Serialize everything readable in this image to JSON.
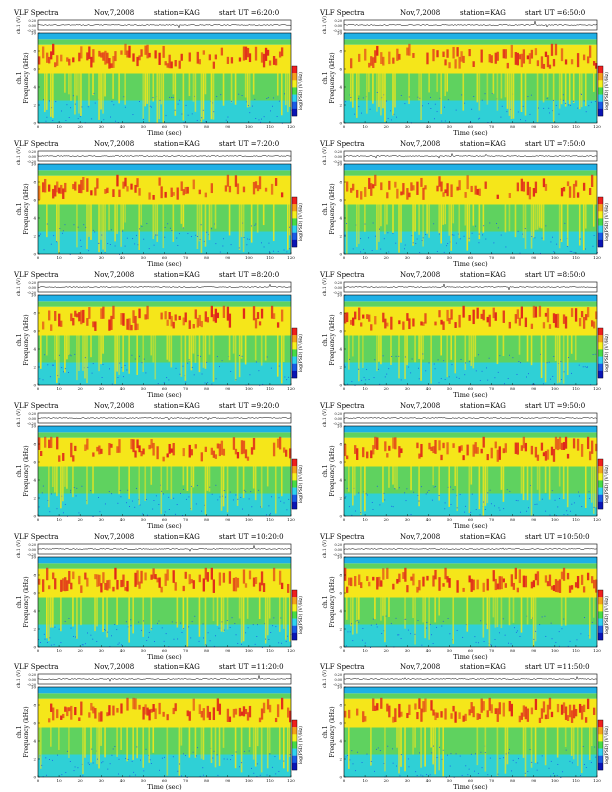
{
  "header_template": {
    "title": "VLF Spectra",
    "date": "Nov,7,2008",
    "station": "station=KAG",
    "start_prefix": "start UT ="
  },
  "labels": {
    "ch_label": "ch.1 (V)",
    "y_label_1": "ch.1",
    "y_label_2": "Frequency (kHz)",
    "x_label": "Time (sec)",
    "colorbar_label": "log(PSD) (V²/Hz)"
  },
  "chart_data": [
    {
      "type": "heatmap",
      "panel": "1",
      "start_ut": "6:20:0",
      "xlabel": "Time (sec)",
      "ylabel": "Frequency (kHz)",
      "xlim": [
        0,
        120
      ],
      "ylim": [
        0,
        10
      ],
      "x_ticks": [
        0,
        10,
        20,
        30,
        40,
        50,
        60,
        70,
        80,
        90,
        100,
        110,
        120
      ],
      "y_ticks": [
        0,
        2,
        4,
        6,
        8,
        10
      ],
      "ch_ticks": [
        "0.20",
        "0.00",
        "-0.20"
      ]
    },
    {
      "type": "heatmap",
      "panel": "2",
      "start_ut": "6:50:0",
      "xlabel": "Time (sec)",
      "ylabel": "Frequency (kHz)",
      "xlim": [
        0,
        120
      ],
      "ylim": [
        0,
        10
      ],
      "x_ticks": [
        0,
        10,
        20,
        30,
        40,
        50,
        60,
        70,
        80,
        90,
        100,
        110,
        120
      ],
      "y_ticks": [
        0,
        2,
        4,
        6,
        8,
        10
      ],
      "ch_ticks": [
        "0.20",
        "0.00",
        "-0.20"
      ]
    },
    {
      "type": "heatmap",
      "panel": "3",
      "start_ut": "7:20:0",
      "xlabel": "Time (sec)",
      "ylabel": "Frequency (kHz)",
      "xlim": [
        0,
        120
      ],
      "ylim": [
        0,
        10
      ],
      "x_ticks": [
        0,
        10,
        20,
        30,
        40,
        50,
        60,
        70,
        80,
        90,
        100,
        110,
        120
      ],
      "y_ticks": [
        0,
        2,
        4,
        6,
        8,
        10
      ],
      "ch_ticks": [
        "0.20",
        "0.00",
        "-0.20"
      ]
    },
    {
      "type": "heatmap",
      "panel": "4",
      "start_ut": "7:50:0",
      "xlabel": "Time (sec)",
      "ylabel": "Frequency (kHz)",
      "xlim": [
        0,
        120
      ],
      "ylim": [
        0,
        10
      ],
      "x_ticks": [
        0,
        10,
        20,
        30,
        40,
        50,
        60,
        70,
        80,
        90,
        100,
        110,
        120
      ],
      "y_ticks": [
        0,
        2,
        4,
        6,
        8,
        10
      ],
      "ch_ticks": [
        "0.20",
        "0.00",
        "-0.20"
      ]
    },
    {
      "type": "heatmap",
      "panel": "5",
      "start_ut": "8:20:0",
      "xlabel": "Time (sec)",
      "ylabel": "Frequency (kHz)",
      "xlim": [
        0,
        120
      ],
      "ylim": [
        0,
        10
      ],
      "x_ticks": [
        0,
        10,
        20,
        30,
        40,
        50,
        60,
        70,
        80,
        90,
        100,
        110,
        120
      ],
      "y_ticks": [
        0,
        2,
        4,
        6,
        8,
        10
      ],
      "ch_ticks": [
        "0.20",
        "0.00",
        "-0.20"
      ]
    },
    {
      "type": "heatmap",
      "panel": "6",
      "start_ut": "8:50:0",
      "xlabel": "Time (sec)",
      "ylabel": "Frequency (kHz)",
      "xlim": [
        0,
        120
      ],
      "ylim": [
        0,
        10
      ],
      "x_ticks": [
        0,
        10,
        20,
        30,
        40,
        50,
        60,
        70,
        80,
        90,
        100,
        110,
        120
      ],
      "y_ticks": [
        0,
        2,
        4,
        6,
        8,
        10
      ],
      "ch_ticks": [
        "0.20",
        "0.00",
        "-0.20"
      ]
    },
    {
      "type": "heatmap",
      "panel": "7",
      "start_ut": "9:20:0",
      "xlabel": "Time (sec)",
      "ylabel": "Frequency (kHz)",
      "xlim": [
        0,
        120
      ],
      "ylim": [
        0,
        10
      ],
      "x_ticks": [
        0,
        10,
        20,
        30,
        40,
        50,
        60,
        70,
        80,
        90,
        100,
        110,
        120
      ],
      "y_ticks": [
        0,
        2,
        4,
        6,
        8,
        10
      ],
      "ch_ticks": [
        "0.20",
        "0.00",
        "-0.20"
      ]
    },
    {
      "type": "heatmap",
      "panel": "8",
      "start_ut": "9:50:0",
      "xlabel": "Time (sec)",
      "ylabel": "Frequency (kHz)",
      "xlim": [
        0,
        120
      ],
      "ylim": [
        0,
        10
      ],
      "x_ticks": [
        0,
        10,
        20,
        30,
        40,
        50,
        60,
        70,
        80,
        90,
        100,
        110,
        120
      ],
      "y_ticks": [
        0,
        2,
        4,
        6,
        8,
        10
      ],
      "ch_ticks": [
        "0.20",
        "0.00",
        "-0.20"
      ]
    },
    {
      "type": "heatmap",
      "panel": "9",
      "start_ut": "10:20:0",
      "xlabel": "Time (sec)",
      "ylabel": "Frequency (kHz)",
      "xlim": [
        0,
        120
      ],
      "ylim": [
        0,
        10
      ],
      "x_ticks": [
        0,
        10,
        20,
        30,
        40,
        50,
        60,
        70,
        80,
        90,
        100,
        110,
        120
      ],
      "y_ticks": [
        0,
        2,
        4,
        6,
        8,
        10
      ],
      "ch_ticks": [
        "0.20",
        "0.00",
        "-0.20"
      ]
    },
    {
      "type": "heatmap",
      "panel": "10",
      "start_ut": "10:50:0",
      "xlabel": "Time (sec)",
      "ylabel": "Frequency (kHz)",
      "xlim": [
        0,
        120
      ],
      "ylim": [
        0,
        10
      ],
      "x_ticks": [
        0,
        10,
        20,
        30,
        40,
        50,
        60,
        70,
        80,
        90,
        100,
        110,
        120
      ],
      "y_ticks": [
        0,
        2,
        4,
        6,
        8,
        10
      ],
      "ch_ticks": [
        "0.20",
        "0.00",
        "-0.20"
      ]
    },
    {
      "type": "heatmap",
      "panel": "11",
      "start_ut": "11:20:0",
      "xlabel": "Time (sec)",
      "ylabel": "Frequency (kHz)",
      "xlim": [
        0,
        120
      ],
      "ylim": [
        0,
        10
      ],
      "x_ticks": [
        0,
        10,
        20,
        30,
        40,
        50,
        60,
        70,
        80,
        90,
        100,
        110,
        120
      ],
      "y_ticks": [
        0,
        2,
        4,
        6,
        8,
        10
      ],
      "ch_ticks": [
        "0.20",
        "0.00",
        "-0.20"
      ]
    },
    {
      "type": "heatmap",
      "panel": "12",
      "start_ut": "11:50:0",
      "xlabel": "Time (sec)",
      "ylabel": "Frequency (kHz)",
      "xlim": [
        0,
        120
      ],
      "ylim": [
        0,
        10
      ],
      "x_ticks": [
        0,
        10,
        20,
        30,
        40,
        50,
        60,
        70,
        80,
        90,
        100,
        110,
        120
      ],
      "y_ticks": [
        0,
        2,
        4,
        6,
        8,
        10
      ],
      "ch_ticks": [
        "0.20",
        "0.00",
        "-0.20"
      ]
    }
  ],
  "colors": {
    "band_high": "#e0261a",
    "band_mid": "#f5e61a",
    "band_low_green": "#5fd25f",
    "band_low_cyan": "#2fd0d6",
    "top_band": "#1fb0e6",
    "colorbar": [
      "#f01e1e",
      "#f5a01a",
      "#f5f01e",
      "#46dc46",
      "#2ed2f0",
      "#1a5ae6",
      "#0a14b4"
    ]
  }
}
